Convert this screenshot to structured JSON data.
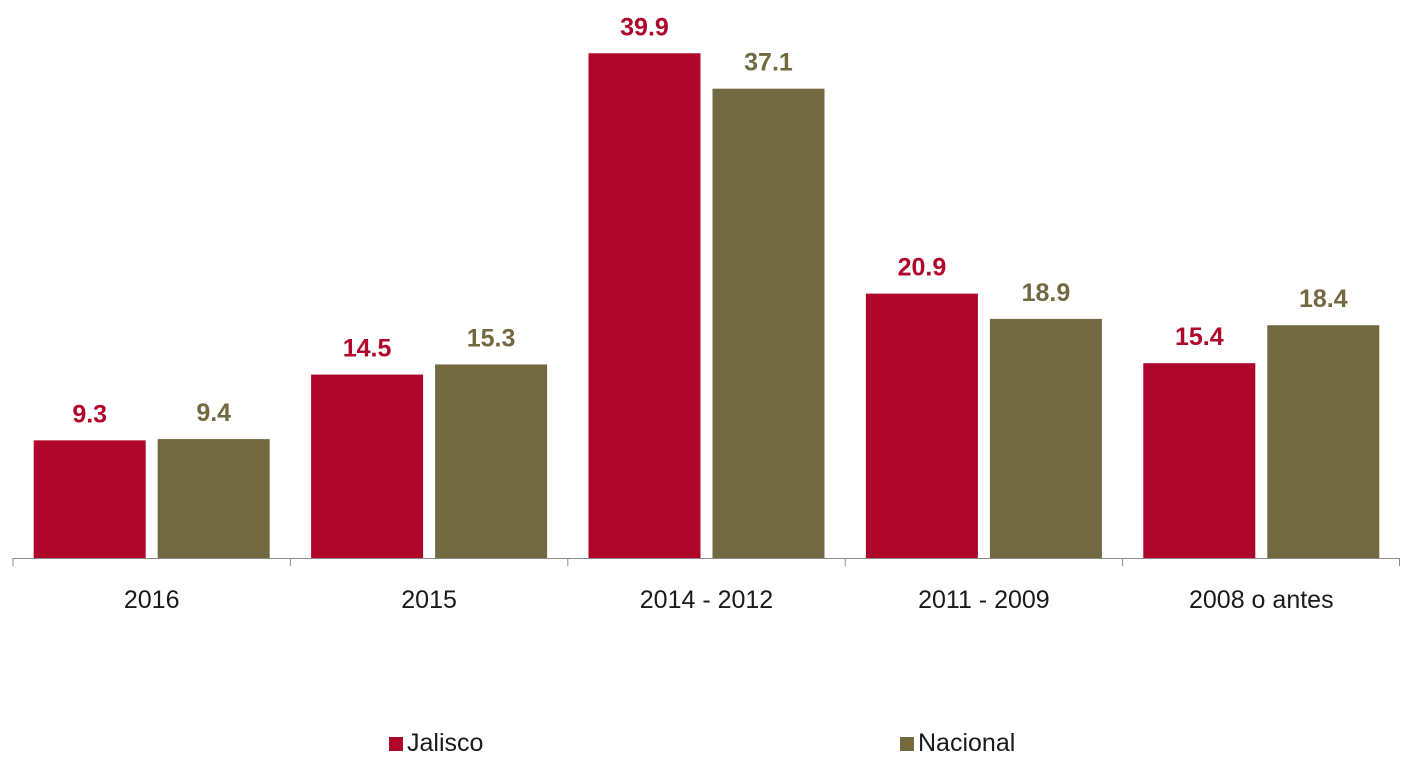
{
  "chart_data": {
    "type": "bar",
    "categories": [
      "2016",
      "2015",
      "2014 - 2012",
      "2011 - 2009",
      "2008 o antes"
    ],
    "series": [
      {
        "name": "Jalisco",
        "values": [
          9.3,
          14.5,
          39.9,
          20.9,
          15.4
        ],
        "color": "#b0062c"
      },
      {
        "name": "Nacional",
        "values": [
          9.4,
          15.3,
          37.1,
          18.9,
          18.4
        ],
        "color": "#736940"
      }
    ],
    "value_labels": [
      [
        "9.3",
        "14.5",
        "39.9",
        "20.9",
        "15.4"
      ],
      [
        "9.4",
        "15.3",
        "37.1",
        "18.9",
        "18.4"
      ]
    ],
    "ylim": [
      0,
      40
    ],
    "grid": false,
    "legend_position": "bottom"
  }
}
